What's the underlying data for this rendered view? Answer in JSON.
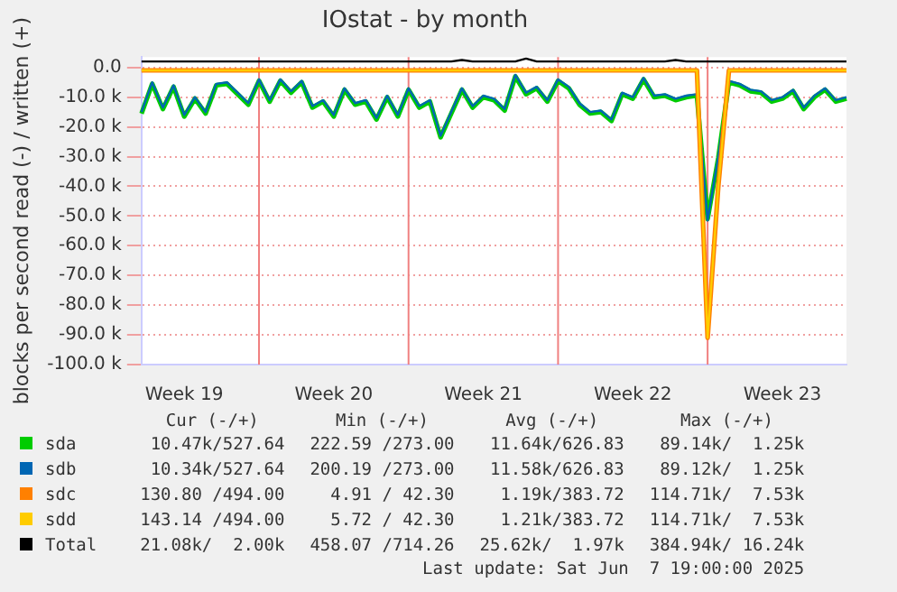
{
  "chart_data": {
    "type": "line",
    "title": "IOstat - by month",
    "ylabel": "blocks per second read (-) / written (+)",
    "categories": [
      null,
      null,
      null,
      null,
      "Week 19",
      null,
      null,
      null,
      null,
      null,
      null,
      null,
      null,
      null,
      null,
      null,
      null,
      null,
      "Week 20",
      null,
      null,
      null,
      null,
      null,
      null,
      null,
      null,
      null,
      null,
      null,
      null,
      null,
      "Week 21",
      null,
      null,
      null,
      null,
      null,
      null,
      null,
      null,
      null,
      null,
      null,
      null,
      null,
      "Week 22",
      null,
      null,
      null,
      null,
      null,
      null,
      null,
      null,
      null,
      null,
      null,
      null,
      null,
      "Week 23",
      null,
      null,
      null,
      null,
      null,
      null
    ],
    "ylim": [
      -100000,
      3500
    ],
    "yticks": [
      {
        "value": -100000,
        "label": "-100.0 k"
      },
      {
        "value": -90000,
        "label": "-90.0 k"
      },
      {
        "value": -80000,
        "label": "-80.0 k"
      },
      {
        "value": -70000,
        "label": "-70.0 k"
      },
      {
        "value": -60000,
        "label": "-60.0 k"
      },
      {
        "value": -50000,
        "label": "-50.0 k"
      },
      {
        "value": -40000,
        "label": "-40.0 k"
      },
      {
        "value": -30000,
        "label": "-30.0 k"
      },
      {
        "value": -20000,
        "label": "-20.0 k"
      },
      {
        "value": -10000,
        "label": "-10.0 k"
      },
      {
        "value": 0,
        "label": "0.0"
      }
    ],
    "grid": true,
    "legend": "bottom",
    "marker": "none",
    "line_style": "solid",
    "series": [
      {
        "name": "sda",
        "color": "#00cc00",
        "values": [
          -15500,
          -5500,
          -14000,
          -6500,
          -16500,
          -10500,
          -15500,
          -6000,
          -5500,
          -9000,
          -12500,
          -4500,
          -11500,
          -4500,
          -8500,
          -5000,
          -13500,
          -11500,
          -16500,
          -7500,
          -12500,
          -11500,
          -17500,
          -10000,
          -16500,
          -7500,
          -13500,
          -11500,
          -23500,
          -15500,
          -7500,
          -13500,
          -10000,
          -11000,
          -14500,
          -3000,
          -9000,
          -7000,
          -11500,
          -4500,
          -7000,
          -12500,
          -15500,
          -15000,
          -18000,
          -9000,
          -10500,
          -4000,
          -10000,
          -9500,
          -11000,
          -10000,
          -9500,
          -51000,
          -30500,
          -5000,
          -6000,
          -8000,
          -8500,
          -11500,
          -10500,
          -8000,
          -14000,
          -10000,
          -7500,
          -11500,
          -10500
        ]
      },
      {
        "name": "sdb",
        "color": "#0066b3",
        "values": [
          -15000,
          -5000,
          -13500,
          -6000,
          -16000,
          -10000,
          -15000,
          -5500,
          -5000,
          -8500,
          -12000,
          -4000,
          -11000,
          -4000,
          -8000,
          -4500,
          -13000,
          -11000,
          -16000,
          -7000,
          -12000,
          -11000,
          -17000,
          -9500,
          -16000,
          -7000,
          -13000,
          -11000,
          -23000,
          -15000,
          -7000,
          -13000,
          -9500,
          -10500,
          -14000,
          -2500,
          -8500,
          -6500,
          -11000,
          -4000,
          -6500,
          -12000,
          -15000,
          -14500,
          -17500,
          -8500,
          -10000,
          -3500,
          -9500,
          -9000,
          -10500,
          -9500,
          -9000,
          -51500,
          -30000,
          -4500,
          -5500,
          -7500,
          -8000,
          -11000,
          -10000,
          -7500,
          -13500,
          -9500,
          -7000,
          -11000,
          -10000
        ]
      },
      {
        "name": "sdc",
        "color": "#ff8000",
        "values": [
          -1000,
          -1000,
          -1000,
          -1000,
          -1000,
          -1000,
          -1000,
          -1000,
          -1000,
          -1000,
          -1000,
          -1000,
          -1000,
          -1000,
          -1000,
          -1000,
          -1000,
          -1000,
          -1000,
          -1000,
          -1000,
          -1000,
          -1000,
          -1000,
          -1000,
          -1000,
          -1000,
          -1000,
          -1000,
          -1000,
          -1000,
          -1000,
          -1000,
          -1000,
          -1000,
          -1000,
          -1000,
          -1000,
          -1000,
          -1000,
          -1000,
          -1000,
          -1000,
          -1000,
          -1000,
          -1000,
          -1000,
          -1000,
          -1000,
          -1000,
          -1000,
          -1000,
          -1000,
          -91000,
          -40000,
          -1000,
          -1000,
          -1000,
          -1000,
          -1000,
          -1000,
          -1000,
          -1000,
          -1000,
          -1000,
          -1000,
          -1000
        ]
      },
      {
        "name": "sdd",
        "color": "#ffcc00",
        "values": [
          -1000,
          -1000,
          -1000,
          -1000,
          -1000,
          -1000,
          -1000,
          -1000,
          -1000,
          -1000,
          -1000,
          -1000,
          -1000,
          -1000,
          -1000,
          -1000,
          -1000,
          -1000,
          -1000,
          -1000,
          -1000,
          -1000,
          -1000,
          -1000,
          -1000,
          -1000,
          -1000,
          -1000,
          -1000,
          -1000,
          -1000,
          -1000,
          -1000,
          -1000,
          -1000,
          -1000,
          -1000,
          -1000,
          -1000,
          -1000,
          -1000,
          -1000,
          -1000,
          -1000,
          -1000,
          -1000,
          -1000,
          -1000,
          -1000,
          -1000,
          -1000,
          -1000,
          -1000,
          -91000,
          -40000,
          -1000,
          -1000,
          -1000,
          -1000,
          -1000,
          -1000,
          -1000,
          -1000,
          -1000,
          -1000,
          -1000,
          -1000
        ]
      },
      {
        "name": "Total",
        "color": "#000000",
        "values": [
          2000,
          2000,
          2000,
          2000,
          2000,
          2000,
          2000,
          2000,
          2000,
          2000,
          2000,
          2000,
          2000,
          2000,
          2000,
          2000,
          2000,
          2000,
          2000,
          2000,
          2000,
          2000,
          2000,
          2000,
          2000,
          2000,
          2000,
          2000,
          2000,
          2000,
          2500,
          2000,
          2000,
          2000,
          2000,
          2000,
          3000,
          2000,
          2000,
          2000,
          2000,
          2000,
          2000,
          2000,
          2000,
          2000,
          2000,
          2000,
          2000,
          2000,
          2500,
          2000,
          2000,
          2000,
          2000,
          2000,
          2000,
          2000,
          2000,
          2000,
          2000,
          2000,
          2000,
          2000,
          2000,
          2000,
          2000
        ]
      }
    ],
    "annotations": [
      "Cur (-/+)",
      "Min (-/+)",
      "Avg (-/+)",
      "Max (-/+)",
      "10.47k/527.64",
      "222.59 /273.00",
      "11.64k/626.83",
      "89.14k/  1.25k",
      "10.34k/527.64",
      "200.19 /273.00",
      "11.58k/626.83",
      "89.12k/  1.25k",
      "130.80 /494.00",
      "4.91 / 42.30",
      "1.19k/383.72",
      "114.71k/  7.53k",
      "143.14 /494.00",
      "5.72 / 42.30",
      "1.21k/383.72",
      "114.71k/  7.53k",
      "21.08k/  2.00k",
      "458.07 /714.26",
      "25.62k/  1.97k",
      "384.94k/ 16.24k",
      "Last update: Sat Jun  7 19:00:00 2025"
    ]
  }
}
